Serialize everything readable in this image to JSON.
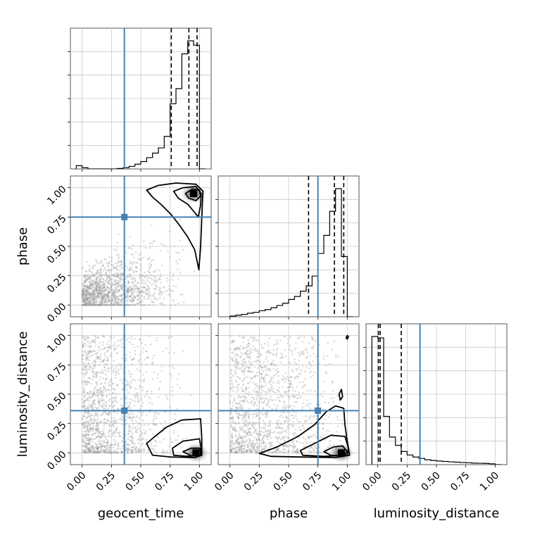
{
  "chart_data": {
    "type": "corner",
    "parameters": [
      "geocent_time",
      "phase",
      "luminosity_distance"
    ],
    "axis_range": [
      -0.1,
      1.1
    ],
    "tick_labels": [
      "0.00",
      "0.25",
      "0.50",
      "0.75",
      "1.00"
    ],
    "grid": true,
    "colors": {
      "truth": "#4682b4",
      "hist": "#000000",
      "points": "#9a9a9a"
    },
    "truths": {
      "geocent_time": 0.36,
      "phase": 0.75,
      "luminosity_distance": 0.36
    },
    "histograms": [
      {
        "parameter": "geocent_time",
        "bin_edges": [
          -0.05,
          0.0,
          0.05,
          0.1,
          0.15,
          0.2,
          0.25,
          0.3,
          0.35,
          0.4,
          0.45,
          0.5,
          0.55,
          0.6,
          0.65,
          0.7,
          0.75,
          0.8,
          0.85,
          0.9,
          0.95,
          1.0,
          1.05
        ],
        "counts": [
          1.5,
          0.6,
          0,
          0,
          0,
          0,
          0,
          0.2,
          0.6,
          1.2,
          2.2,
          3.4,
          5.2,
          7.3,
          9.7,
          15.0,
          30.0,
          37.0,
          53.0,
          59.0,
          57.0,
          0
        ],
        "quantiles": [
          0.76,
          0.91,
          0.98
        ]
      },
      {
        "parameter": "phase",
        "bin_edges": [
          0.0,
          0.05,
          0.1,
          0.15,
          0.2,
          0.25,
          0.3,
          0.35,
          0.4,
          0.45,
          0.5,
          0.55,
          0.6,
          0.65,
          0.7,
          0.75,
          0.8,
          0.85,
          0.9,
          0.95,
          1.0,
          1.05
        ],
        "counts": [
          0.5,
          1.1,
          1.6,
          2.4,
          3.0,
          4.0,
          4.8,
          6.0,
          7.5,
          9.0,
          11.5,
          13.5,
          17.0,
          20.5,
          27.0,
          42.0,
          54.0,
          70.0,
          85.0,
          40.0,
          0
        ],
        "quantiles": [
          0.67,
          0.89,
          0.97
        ]
      },
      {
        "parameter": "luminosity_distance",
        "bin_edges": [
          -0.05,
          0.0,
          0.05,
          0.1,
          0.15,
          0.2,
          0.25,
          0.3,
          0.35,
          0.4,
          0.45,
          0.5,
          0.55,
          0.6,
          0.65,
          0.7,
          0.75,
          0.8,
          0.85,
          0.9,
          0.95,
          1.0,
          1.05
        ],
        "counts": [
          93.0,
          92.0,
          35.0,
          20.0,
          14.0,
          9.5,
          7.0,
          5.5,
          4.5,
          3.5,
          3.0,
          2.6,
          2.3,
          2.0,
          1.8,
          1.5,
          1.3,
          1.1,
          1.0,
          0.9,
          0.6,
          0
        ],
        "quantiles": [
          0.005,
          0.02,
          0.2
        ]
      }
    ],
    "scatter_panels": [
      {
        "x": "geocent_time",
        "y": "phase",
        "density_peak": [
          0.95,
          0.95
        ],
        "contours": [
          [
            [
              0.55,
              0.98
            ],
            [
              0.65,
              1.02
            ],
            [
              0.8,
              1.04
            ],
            [
              0.97,
              1.03
            ],
            [
              1.03,
              0.97
            ],
            [
              1.02,
              0.75
            ],
            [
              1.01,
              0.5
            ],
            [
              0.995,
              0.3
            ],
            [
              0.96,
              0.47
            ],
            [
              0.9,
              0.58
            ],
            [
              0.83,
              0.68
            ],
            [
              0.76,
              0.77
            ],
            [
              0.67,
              0.86
            ],
            [
              0.6,
              0.92
            ],
            [
              0.55,
              0.98
            ]
          ],
          [
            [
              0.78,
              0.97
            ],
            [
              0.86,
              1.0
            ],
            [
              0.97,
              1.01
            ],
            [
              1.015,
              0.95
            ],
            [
              1.01,
              0.85
            ],
            [
              0.99,
              0.75
            ],
            [
              0.95,
              0.8
            ],
            [
              0.9,
              0.86
            ],
            [
              0.82,
              0.91
            ],
            [
              0.78,
              0.97
            ]
          ],
          [
            [
              0.88,
              0.95
            ],
            [
              0.94,
              0.99
            ],
            [
              1.0,
              0.98
            ],
            [
              1.01,
              0.93
            ],
            [
              0.97,
              0.89
            ],
            [
              0.91,
              0.91
            ],
            [
              0.88,
              0.95
            ]
          ]
        ]
      },
      {
        "x": "geocent_time",
        "y": "luminosity_distance",
        "density_peak": [
          0.97,
          0.0
        ],
        "contours": [
          [
            [
              0.55,
              0.08
            ],
            [
              0.62,
              0.14
            ],
            [
              0.72,
              0.22
            ],
            [
              0.85,
              0.28
            ],
            [
              1.01,
              0.29
            ],
            [
              1.02,
              0.12
            ],
            [
              1.02,
              -0.02
            ],
            [
              0.96,
              -0.04
            ],
            [
              0.75,
              -0.035
            ],
            [
              0.6,
              -0.02
            ],
            [
              0.55,
              0.08
            ]
          ],
          [
            [
              0.77,
              0.04
            ],
            [
              0.86,
              0.1
            ],
            [
              1.0,
              0.12
            ],
            [
              1.015,
              0.04
            ],
            [
              1.01,
              -0.02
            ],
            [
              0.9,
              -0.03
            ],
            [
              0.78,
              -0.02
            ],
            [
              0.77,
              0.04
            ]
          ],
          [
            [
              0.86,
              0.01
            ],
            [
              0.93,
              0.04
            ],
            [
              1.005,
              0.04
            ],
            [
              1.01,
              -0.015
            ],
            [
              0.93,
              -0.025
            ],
            [
              0.86,
              0.01
            ]
          ]
        ]
      },
      {
        "x": "phase",
        "y": "luminosity_distance",
        "density_peak": [
          0.95,
          0.0
        ],
        "contours": [
          [
            [
              0.25,
              -0.005
            ],
            [
              0.4,
              0.05
            ],
            [
              0.58,
              0.14
            ],
            [
              0.72,
              0.24
            ],
            [
              0.82,
              0.35
            ],
            [
              0.9,
              0.4
            ],
            [
              0.97,
              0.38
            ],
            [
              0.98,
              0.24
            ],
            [
              1.0,
              0.1
            ],
            [
              1.02,
              -0.02
            ],
            [
              0.9,
              -0.04
            ],
            [
              0.6,
              -0.035
            ],
            [
              0.35,
              -0.03
            ],
            [
              0.25,
              -0.005
            ]
          ],
          [
            [
              0.6,
              0.02
            ],
            [
              0.72,
              0.08
            ],
            [
              0.86,
              0.15
            ],
            [
              0.98,
              0.14
            ],
            [
              1.01,
              0.04
            ],
            [
              1.0,
              -0.02
            ],
            [
              0.8,
              -0.03
            ],
            [
              0.62,
              -0.02
            ],
            [
              0.6,
              0.02
            ]
          ],
          [
            [
              0.8,
              0.01
            ],
            [
              0.88,
              0.05
            ],
            [
              0.96,
              0.06
            ],
            [
              1.0,
              0.01
            ],
            [
              0.97,
              -0.025
            ],
            [
              0.86,
              -0.02
            ],
            [
              0.8,
              0.01
            ]
          ],
          [
            [
              0.93,
              0.5
            ],
            [
              0.95,
              0.54
            ],
            [
              0.96,
              0.48
            ],
            [
              0.94,
              0.45
            ],
            [
              0.93,
              0.5
            ]
          ],
          [
            [
              0.99,
              0.98
            ],
            [
              1.0,
              1.0
            ],
            [
              1.01,
              0.99
            ],
            [
              1.0,
              0.97
            ],
            [
              0.99,
              0.98
            ]
          ]
        ]
      }
    ]
  }
}
